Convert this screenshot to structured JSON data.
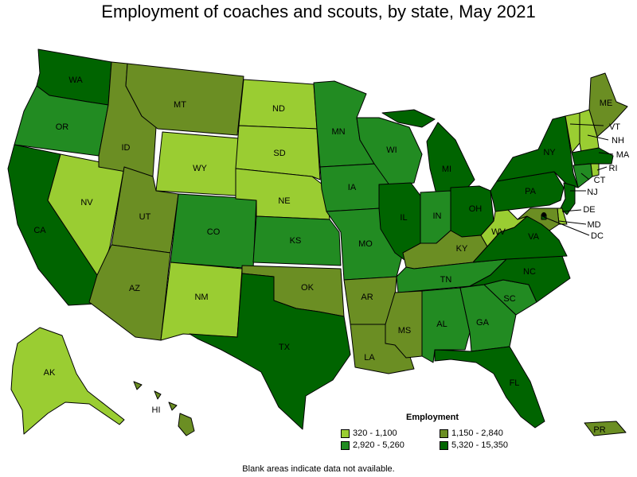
{
  "title": "Employment of coaches and scouts, by state, May 2021",
  "footnote": "Blank areas indicate data not available.",
  "legend": {
    "title": "Employment",
    "bins": [
      {
        "label": "320 - 1,100",
        "color": "#9acd32"
      },
      {
        "label": "1,150 - 2,840",
        "color": "#6b8e23"
      },
      {
        "label": "2,920 - 5,260",
        "color": "#228b22"
      },
      {
        "label": "5,320 - 15,350",
        "color": "#006400"
      }
    ]
  },
  "states": [
    {
      "abbr": "WA",
      "bin": 3
    },
    {
      "abbr": "OR",
      "bin": 2
    },
    {
      "abbr": "CA",
      "bin": 3
    },
    {
      "abbr": "NV",
      "bin": 0
    },
    {
      "abbr": "ID",
      "bin": 1
    },
    {
      "abbr": "MT",
      "bin": 1
    },
    {
      "abbr": "WY",
      "bin": 0
    },
    {
      "abbr": "UT",
      "bin": 1
    },
    {
      "abbr": "AZ",
      "bin": 1
    },
    {
      "abbr": "CO",
      "bin": 2
    },
    {
      "abbr": "NM",
      "bin": 0
    },
    {
      "abbr": "ND",
      "bin": 0
    },
    {
      "abbr": "SD",
      "bin": 0
    },
    {
      "abbr": "NE",
      "bin": 0
    },
    {
      "abbr": "KS",
      "bin": 2
    },
    {
      "abbr": "OK",
      "bin": 1
    },
    {
      "abbr": "TX",
      "bin": 3
    },
    {
      "abbr": "MN",
      "bin": 2
    },
    {
      "abbr": "IA",
      "bin": 2
    },
    {
      "abbr": "MO",
      "bin": 2
    },
    {
      "abbr": "AR",
      "bin": 1
    },
    {
      "abbr": "LA",
      "bin": 1
    },
    {
      "abbr": "WI",
      "bin": 2
    },
    {
      "abbr": "IL",
      "bin": 3
    },
    {
      "abbr": "MI",
      "bin": 3
    },
    {
      "abbr": "IN",
      "bin": 2
    },
    {
      "abbr": "OH",
      "bin": 3
    },
    {
      "abbr": "KY",
      "bin": 1
    },
    {
      "abbr": "TN",
      "bin": 2
    },
    {
      "abbr": "MS",
      "bin": 1
    },
    {
      "abbr": "AL",
      "bin": 2
    },
    {
      "abbr": "GA",
      "bin": 2
    },
    {
      "abbr": "FL",
      "bin": 3
    },
    {
      "abbr": "SC",
      "bin": 2
    },
    {
      "abbr": "NC",
      "bin": 3
    },
    {
      "abbr": "VA",
      "bin": 3
    },
    {
      "abbr": "WV",
      "bin": 0
    },
    {
      "abbr": "PA",
      "bin": 3
    },
    {
      "abbr": "NY",
      "bin": 3
    },
    {
      "abbr": "ME",
      "bin": 1
    },
    {
      "abbr": "VT",
      "bin": 0
    },
    {
      "abbr": "NH",
      "bin": 0
    },
    {
      "abbr": "MA",
      "bin": 3
    },
    {
      "abbr": "CT",
      "bin": 2
    },
    {
      "abbr": "RI",
      "bin": 0
    },
    {
      "abbr": "NJ",
      "bin": 3
    },
    {
      "abbr": "DE",
      "bin": 0
    },
    {
      "abbr": "MD",
      "bin": 1
    },
    {
      "abbr": "DC",
      "bin": 3
    },
    {
      "abbr": "AK",
      "bin": 0
    },
    {
      "abbr": "HI",
      "bin": 1
    },
    {
      "abbr": "PR",
      "bin": 1
    }
  ]
}
